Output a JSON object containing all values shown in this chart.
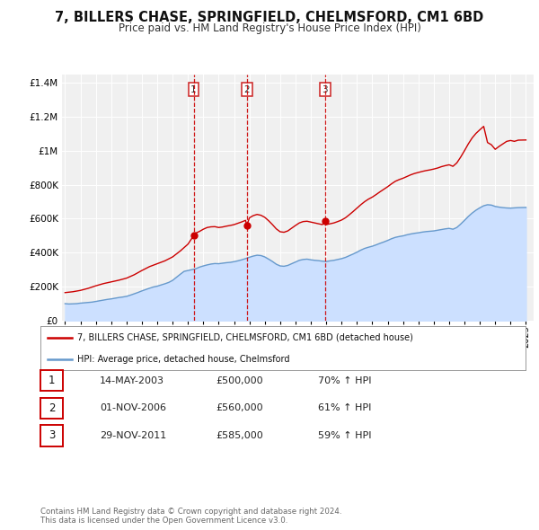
{
  "title": "7, BILLERS CHASE, SPRINGFIELD, CHELMSFORD, CM1 6BD",
  "subtitle": "Price paid vs. HM Land Registry's House Price Index (HPI)",
  "property_label": "7, BILLERS CHASE, SPRINGFIELD, CHELMSFORD, CM1 6BD (detached house)",
  "hpi_label": "HPI: Average price, detached house, Chelmsford",
  "property_color": "#cc0000",
  "hpi_color": "#6699cc",
  "hpi_fill_color": "#cce0ff",
  "background_color": "#f0f0f0",
  "grid_color": "#ffffff",
  "transactions": [
    {
      "num": 1,
      "date": "14-MAY-2003",
      "price": 500000,
      "year": 2003.37,
      "hpi_pct": "70%"
    },
    {
      "num": 2,
      "date": "01-NOV-2006",
      "price": 560000,
      "year": 2006.83,
      "hpi_pct": "61%"
    },
    {
      "num": 3,
      "date": "29-NOV-2011",
      "price": 585000,
      "year": 2011.91,
      "hpi_pct": "59%"
    }
  ],
  "copyright": "Contains HM Land Registry data © Crown copyright and database right 2024.\nThis data is licensed under the Open Government Licence v3.0.",
  "ylim": [
    0,
    1450000
  ],
  "xlim": [
    1994.8,
    2025.5
  ],
  "yticks": [
    0,
    200000,
    400000,
    600000,
    800000,
    1000000,
    1200000,
    1400000
  ],
  "ytick_labels": [
    "£0",
    "£200K",
    "£400K",
    "£600K",
    "£800K",
    "£1M",
    "£1.2M",
    "£1.4M"
  ],
  "xticks": [
    1995,
    1996,
    1997,
    1998,
    1999,
    2000,
    2001,
    2002,
    2003,
    2004,
    2005,
    2006,
    2007,
    2008,
    2009,
    2010,
    2011,
    2012,
    2013,
    2014,
    2015,
    2016,
    2017,
    2018,
    2019,
    2020,
    2021,
    2022,
    2023,
    2024,
    2025
  ],
  "hpi_data": [
    [
      1995.0,
      100000
    ],
    [
      1995.25,
      98000
    ],
    [
      1995.5,
      99000
    ],
    [
      1995.75,
      100000
    ],
    [
      1996.0,
      103000
    ],
    [
      1996.25,
      105000
    ],
    [
      1996.5,
      107000
    ],
    [
      1996.75,
      109000
    ],
    [
      1997.0,
      113000
    ],
    [
      1997.25,
      117000
    ],
    [
      1997.5,
      121000
    ],
    [
      1997.75,
      125000
    ],
    [
      1998.0,
      128000
    ],
    [
      1998.25,
      132000
    ],
    [
      1998.5,
      136000
    ],
    [
      1998.75,
      139000
    ],
    [
      1999.0,
      143000
    ],
    [
      1999.25,
      150000
    ],
    [
      1999.5,
      158000
    ],
    [
      1999.75,
      166000
    ],
    [
      2000.0,
      175000
    ],
    [
      2000.25,
      183000
    ],
    [
      2000.5,
      191000
    ],
    [
      2000.75,
      198000
    ],
    [
      2001.0,
      203000
    ],
    [
      2001.25,
      210000
    ],
    [
      2001.5,
      217000
    ],
    [
      2001.75,
      225000
    ],
    [
      2002.0,
      237000
    ],
    [
      2002.25,
      255000
    ],
    [
      2002.5,
      273000
    ],
    [
      2002.75,
      290000
    ],
    [
      2003.0,
      295000
    ],
    [
      2003.25,
      300000
    ],
    [
      2003.5,
      305000
    ],
    [
      2003.75,
      315000
    ],
    [
      2004.0,
      322000
    ],
    [
      2004.25,
      328000
    ],
    [
      2004.5,
      333000
    ],
    [
      2004.75,
      336000
    ],
    [
      2005.0,
      335000
    ],
    [
      2005.25,
      338000
    ],
    [
      2005.5,
      341000
    ],
    [
      2005.75,
      343000
    ],
    [
      2006.0,
      347000
    ],
    [
      2006.25,
      352000
    ],
    [
      2006.5,
      358000
    ],
    [
      2006.75,
      365000
    ],
    [
      2007.0,
      373000
    ],
    [
      2007.25,
      380000
    ],
    [
      2007.5,
      385000
    ],
    [
      2007.75,
      383000
    ],
    [
      2008.0,
      375000
    ],
    [
      2008.25,
      362000
    ],
    [
      2008.5,
      348000
    ],
    [
      2008.75,
      332000
    ],
    [
      2009.0,
      322000
    ],
    [
      2009.25,
      320000
    ],
    [
      2009.5,
      325000
    ],
    [
      2009.75,
      335000
    ],
    [
      2010.0,
      345000
    ],
    [
      2010.25,
      355000
    ],
    [
      2010.5,
      360000
    ],
    [
      2010.75,
      362000
    ],
    [
      2011.0,
      358000
    ],
    [
      2011.25,
      355000
    ],
    [
      2011.5,
      353000
    ],
    [
      2011.75,
      350000
    ],
    [
      2012.0,
      348000
    ],
    [
      2012.25,
      352000
    ],
    [
      2012.5,
      355000
    ],
    [
      2012.75,
      360000
    ],
    [
      2013.0,
      365000
    ],
    [
      2013.25,
      372000
    ],
    [
      2013.5,
      382000
    ],
    [
      2013.75,
      392000
    ],
    [
      2014.0,
      403000
    ],
    [
      2014.25,
      415000
    ],
    [
      2014.5,
      425000
    ],
    [
      2014.75,
      432000
    ],
    [
      2015.0,
      438000
    ],
    [
      2015.25,
      446000
    ],
    [
      2015.5,
      455000
    ],
    [
      2015.75,
      463000
    ],
    [
      2016.0,
      472000
    ],
    [
      2016.25,
      482000
    ],
    [
      2016.5,
      490000
    ],
    [
      2016.75,
      495000
    ],
    [
      2017.0,
      499000
    ],
    [
      2017.25,
      505000
    ],
    [
      2017.5,
      510000
    ],
    [
      2017.75,
      514000
    ],
    [
      2018.0,
      517000
    ],
    [
      2018.25,
      521000
    ],
    [
      2018.5,
      524000
    ],
    [
      2018.75,
      526000
    ],
    [
      2019.0,
      528000
    ],
    [
      2019.25,
      532000
    ],
    [
      2019.5,
      536000
    ],
    [
      2019.75,
      540000
    ],
    [
      2020.0,
      543000
    ],
    [
      2020.25,
      538000
    ],
    [
      2020.5,
      548000
    ],
    [
      2020.75,
      568000
    ],
    [
      2021.0,
      590000
    ],
    [
      2021.25,
      613000
    ],
    [
      2021.5,
      633000
    ],
    [
      2021.75,
      650000
    ],
    [
      2022.0,
      664000
    ],
    [
      2022.25,
      676000
    ],
    [
      2022.5,
      682000
    ],
    [
      2022.75,
      680000
    ],
    [
      2023.0,
      672000
    ],
    [
      2023.25,
      668000
    ],
    [
      2023.5,
      665000
    ],
    [
      2023.75,
      663000
    ],
    [
      2024.0,
      662000
    ],
    [
      2024.5,
      665000
    ],
    [
      2025.0,
      666000
    ]
  ],
  "property_data": [
    [
      1995.0,
      165000
    ],
    [
      1995.5,
      170000
    ],
    [
      1996.0,
      178000
    ],
    [
      1996.5,
      190000
    ],
    [
      1997.0,
      205000
    ],
    [
      1997.5,
      218000
    ],
    [
      1998.0,
      228000
    ],
    [
      1998.5,
      238000
    ],
    [
      1999.0,
      250000
    ],
    [
      1999.5,
      270000
    ],
    [
      2000.0,
      295000
    ],
    [
      2000.5,
      318000
    ],
    [
      2001.0,
      335000
    ],
    [
      2001.5,
      352000
    ],
    [
      2002.0,
      375000
    ],
    [
      2002.5,
      410000
    ],
    [
      2003.0,
      450000
    ],
    [
      2003.37,
      500000
    ],
    [
      2003.5,
      515000
    ],
    [
      2003.75,
      525000
    ],
    [
      2004.0,
      538000
    ],
    [
      2004.25,
      548000
    ],
    [
      2004.5,
      552000
    ],
    [
      2004.75,
      553000
    ],
    [
      2005.0,
      548000
    ],
    [
      2005.25,
      551000
    ],
    [
      2005.5,
      556000
    ],
    [
      2005.75,
      560000
    ],
    [
      2006.0,
      565000
    ],
    [
      2006.25,
      573000
    ],
    [
      2006.5,
      581000
    ],
    [
      2006.75,
      590000
    ],
    [
      2006.83,
      560000
    ],
    [
      2007.0,
      605000
    ],
    [
      2007.25,
      618000
    ],
    [
      2007.5,
      625000
    ],
    [
      2007.75,
      620000
    ],
    [
      2008.0,
      608000
    ],
    [
      2008.25,
      588000
    ],
    [
      2008.5,
      565000
    ],
    [
      2008.75,
      540000
    ],
    [
      2009.0,
      523000
    ],
    [
      2009.25,
      520000
    ],
    [
      2009.5,
      528000
    ],
    [
      2009.75,
      544000
    ],
    [
      2010.0,
      560000
    ],
    [
      2010.25,
      575000
    ],
    [
      2010.5,
      583000
    ],
    [
      2010.75,
      585000
    ],
    [
      2011.0,
      580000
    ],
    [
      2011.25,
      575000
    ],
    [
      2011.5,
      570000
    ],
    [
      2011.75,
      565000
    ],
    [
      2011.91,
      585000
    ],
    [
      2012.0,
      565000
    ],
    [
      2012.25,
      570000
    ],
    [
      2012.5,
      575000
    ],
    [
      2012.75,
      583000
    ],
    [
      2013.0,
      592000
    ],
    [
      2013.25,
      605000
    ],
    [
      2013.5,
      623000
    ],
    [
      2013.75,
      642000
    ],
    [
      2014.0,
      662000
    ],
    [
      2014.25,
      682000
    ],
    [
      2014.5,
      700000
    ],
    [
      2014.75,
      715000
    ],
    [
      2015.0,
      727000
    ],
    [
      2015.25,
      742000
    ],
    [
      2015.5,
      758000
    ],
    [
      2015.75,
      773000
    ],
    [
      2016.0,
      788000
    ],
    [
      2016.25,
      805000
    ],
    [
      2016.5,
      820000
    ],
    [
      2016.75,
      830000
    ],
    [
      2017.0,
      838000
    ],
    [
      2017.25,
      848000
    ],
    [
      2017.5,
      858000
    ],
    [
      2017.75,
      866000
    ],
    [
      2018.0,
      872000
    ],
    [
      2018.25,
      878000
    ],
    [
      2018.5,
      883000
    ],
    [
      2018.75,
      887000
    ],
    [
      2019.0,
      892000
    ],
    [
      2019.25,
      898000
    ],
    [
      2019.5,
      906000
    ],
    [
      2019.75,
      912000
    ],
    [
      2020.0,
      917000
    ],
    [
      2020.25,
      908000
    ],
    [
      2020.5,
      928000
    ],
    [
      2020.75,
      962000
    ],
    [
      2021.0,
      1000000
    ],
    [
      2021.25,
      1040000
    ],
    [
      2021.5,
      1075000
    ],
    [
      2021.75,
      1102000
    ],
    [
      2022.0,
      1123000
    ],
    [
      2022.25,
      1143000
    ],
    [
      2022.5,
      1048000
    ],
    [
      2022.75,
      1035000
    ],
    [
      2023.0,
      1008000
    ],
    [
      2023.25,
      1025000
    ],
    [
      2023.5,
      1040000
    ],
    [
      2023.75,
      1055000
    ],
    [
      2024.0,
      1060000
    ],
    [
      2024.25,
      1055000
    ],
    [
      2024.5,
      1062000
    ],
    [
      2025.0,
      1063000
    ]
  ]
}
